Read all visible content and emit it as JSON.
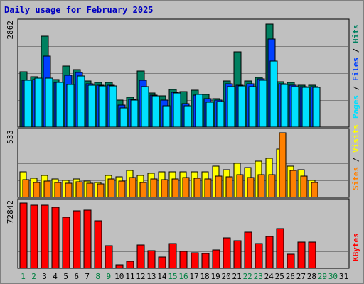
{
  "title": "Daily usage for February 2025",
  "colors": {
    "hits": "#008060",
    "files": "#0040ff",
    "pages": "#00e0ff",
    "visits": "#ffff00",
    "sites": "#ff8000",
    "kbytes": "#ff0000",
    "background": "#c0c0c0",
    "weekday_label": "#000000",
    "weekend_label": "#008040"
  },
  "legend": {
    "top": [
      "Pages",
      "Files",
      "Hits"
    ],
    "middle": [
      "Sites",
      "Visits"
    ],
    "bottom": [
      "KBytes"
    ],
    "separator": " / "
  },
  "chart_data": [
    {
      "type": "bar",
      "panel": "hits-files-pages",
      "max_label": "2862",
      "ylim": [
        0,
        2862
      ],
      "categories": [
        "1",
        "2",
        "3",
        "4",
        "5",
        "6",
        "7",
        "8",
        "9",
        "10",
        "11",
        "12",
        "13",
        "14",
        "15",
        "16",
        "17",
        "18",
        "19",
        "20",
        "21",
        "22",
        "23",
        "24",
        "25",
        "26",
        "27",
        "28"
      ],
      "series": [
        {
          "name": "Hits",
          "values": [
            1520,
            1400,
            2510,
            1320,
            1680,
            1580,
            1280,
            1240,
            1230,
            750,
            820,
            1550,
            950,
            870,
            1040,
            980,
            1010,
            900,
            790,
            1280,
            2070,
            1280,
            1380,
            2840,
            1260,
            1240,
            1160,
            1160
          ]
        },
        {
          "name": "Files",
          "values": [
            1300,
            1320,
            1960,
            1240,
            1430,
            1500,
            1200,
            1160,
            1160,
            600,
            760,
            1290,
            880,
            750,
            960,
            650,
            890,
            780,
            740,
            1200,
            1160,
            1200,
            1330,
            2440,
            1200,
            1160,
            1120,
            1110
          ]
        },
        {
          "name": "Pages",
          "values": [
            1300,
            1350,
            1360,
            1240,
            1180,
            1420,
            1160,
            1130,
            1130,
            520,
            740,
            1120,
            870,
            590,
            950,
            580,
            900,
            690,
            700,
            1110,
            1140,
            1120,
            1300,
            1820,
            1170,
            1120,
            1100,
            1090
          ]
        }
      ]
    },
    {
      "type": "bar",
      "panel": "visits-sites",
      "max_label": "533",
      "ylim": [
        0,
        533
      ],
      "categories": [
        "1",
        "2",
        "3",
        "4",
        "5",
        "6",
        "7",
        "8",
        "9",
        "10",
        "11",
        "12",
        "13",
        "14",
        "15",
        "16",
        "17",
        "18",
        "19",
        "20",
        "21",
        "22",
        "23",
        "24",
        "25",
        "26",
        "27",
        "28"
      ],
      "series": [
        {
          "name": "Visits",
          "values": [
            210,
            160,
            180,
            150,
            140,
            150,
            135,
            125,
            180,
            170,
            220,
            180,
            200,
            210,
            210,
            210,
            210,
            210,
            260,
            230,
            280,
            245,
            300,
            325,
            400,
            255,
            230,
            140
          ]
        },
        {
          "name": "Sites",
          "values": [
            145,
            125,
            135,
            125,
            115,
            130,
            118,
            113,
            150,
            135,
            165,
            125,
            150,
            145,
            155,
            165,
            160,
            150,
            175,
            170,
            185,
            165,
            190,
            185,
            533,
            225,
            175,
            125
          ]
        }
      ]
    },
    {
      "type": "bar",
      "panel": "kbytes",
      "max_label": "72842",
      "ylim": [
        0,
        72842
      ],
      "categories": [
        "1",
        "2",
        "3",
        "4",
        "5",
        "6",
        "7",
        "8",
        "9",
        "10",
        "11",
        "12",
        "13",
        "14",
        "15",
        "16",
        "17",
        "18",
        "19",
        "20",
        "21",
        "22",
        "23",
        "24",
        "25",
        "26",
        "27",
        "28"
      ],
      "series": [
        {
          "name": "KBytes",
          "values": [
            72842,
            70400,
            70400,
            67800,
            57300,
            64300,
            64600,
            53300,
            25300,
            4000,
            8000,
            25900,
            19900,
            12600,
            27700,
            18800,
            17700,
            16400,
            20700,
            33800,
            30800,
            40600,
            27500,
            35600,
            44700,
            16100,
            29200,
            29500
          ]
        }
      ]
    }
  ],
  "day_labels": [
    "1",
    "2",
    "3",
    "4",
    "5",
    "6",
    "7",
    "8",
    "9",
    "10",
    "11",
    "12",
    "13",
    "14",
    "15",
    "16",
    "17",
    "18",
    "19",
    "20",
    "21",
    "22",
    "23",
    "24",
    "25",
    "26",
    "27",
    "28",
    "29",
    "30",
    "31"
  ],
  "weekend_days": [
    1,
    2,
    8,
    9,
    15,
    16,
    22,
    23,
    29,
    30
  ]
}
